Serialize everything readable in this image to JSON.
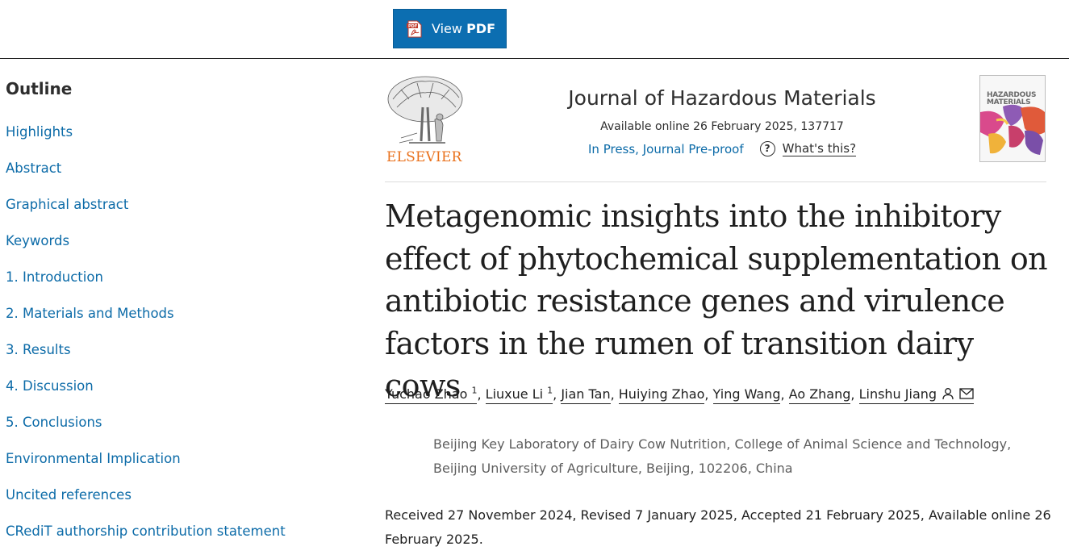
{
  "toolbar": {
    "view_pdf_prefix": "View",
    "view_pdf_bold": "PDF"
  },
  "outline": {
    "title": "Outline",
    "items": [
      "Highlights",
      "Abstract",
      "Graphical abstract",
      "Keywords",
      "1. Introduction",
      "2. Materials and Methods",
      "3. Results",
      "4. Discussion",
      "5. Conclusions",
      "Environmental Implication",
      "Uncited references",
      "CRediT authorship contribution statement"
    ]
  },
  "journal": {
    "publisher": "ELSEVIER",
    "title": "Journal of Hazardous Materials",
    "availability": "Available online 26 February 2025, 137717",
    "status": "In Press, Journal Pre-proof",
    "help_label": "What's this?",
    "cover_text_line1": "HAZARDOUS",
    "cover_text_line2": "MATERIALS"
  },
  "article": {
    "title": "Metagenomic insights into the inhibitory effect of phytochemical supplementation on antibiotic resistance genes and virulence factors in the rumen of transition dairy cows",
    "authors": [
      {
        "name": "Yuchao Zhao",
        "sup": "1"
      },
      {
        "name": "Liuxue Li",
        "sup": "1"
      },
      {
        "name": "Jian Tan",
        "sup": ""
      },
      {
        "name": "Huiying Zhao",
        "sup": ""
      },
      {
        "name": "Ying Wang",
        "sup": ""
      },
      {
        "name": "Ao Zhang",
        "sup": ""
      },
      {
        "name": "Linshu Jiang",
        "sup": ""
      }
    ],
    "affiliation": "Beijing Key Laboratory of Dairy Cow Nutrition, College of Animal Science and Technology, Beijing University of Agriculture, Beijing, 102206, China",
    "dates": "Received 27 November 2024, Revised 7 January 2025, Accepted 21 February 2025, Available online 26 February 2025."
  },
  "colors": {
    "link": "#0c6ba8",
    "button": "#0c6eb1",
    "elsevier_orange": "#e9711c"
  },
  "icons": [
    "pdf-icon",
    "help-circle-icon",
    "person-icon",
    "envelope-icon",
    "elsevier-tree-logo"
  ]
}
